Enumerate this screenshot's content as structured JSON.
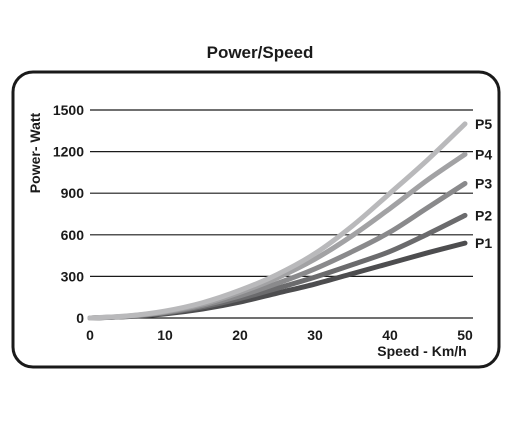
{
  "chart_data": {
    "type": "line",
    "title": "Power/Speed",
    "xlabel": "Speed - Km/h",
    "ylabel": "Power- Watt",
    "xlim": [
      0,
      50
    ],
    "ylim": [
      0,
      1500
    ],
    "x_ticks": [
      "0",
      "10",
      "20",
      "30",
      "40",
      "50"
    ],
    "y_ticks": [
      "0",
      "300",
      "600",
      "900",
      "1200",
      "1500"
    ],
    "grid": "horizontal",
    "x": [
      0,
      5,
      10,
      15,
      20,
      25,
      30,
      35,
      40,
      45,
      50
    ],
    "series": [
      {
        "name": "P1",
        "color": "#4d4d4f",
        "values": [
          0,
          10,
          30,
          65,
          115,
          180,
          245,
          320,
          395,
          470,
          540
        ]
      },
      {
        "name": "P2",
        "color": "#6b6b6d",
        "values": [
          0,
          12,
          36,
          80,
          140,
          215,
          295,
          385,
          480,
          605,
          740
        ]
      },
      {
        "name": "P3",
        "color": "#8a8a8c",
        "values": [
          0,
          13,
          40,
          90,
          160,
          250,
          355,
          480,
          620,
          795,
          970
        ]
      },
      {
        "name": "P4",
        "color": "#a2a2a4",
        "values": [
          0,
          14,
          45,
          100,
          185,
          290,
          425,
          595,
          790,
          995,
          1180
        ]
      },
      {
        "name": "P5",
        "color": "#b9b9bb",
        "values": [
          0,
          15,
          50,
          110,
          200,
          315,
          465,
          665,
          900,
          1140,
          1400
        ]
      }
    ]
  }
}
